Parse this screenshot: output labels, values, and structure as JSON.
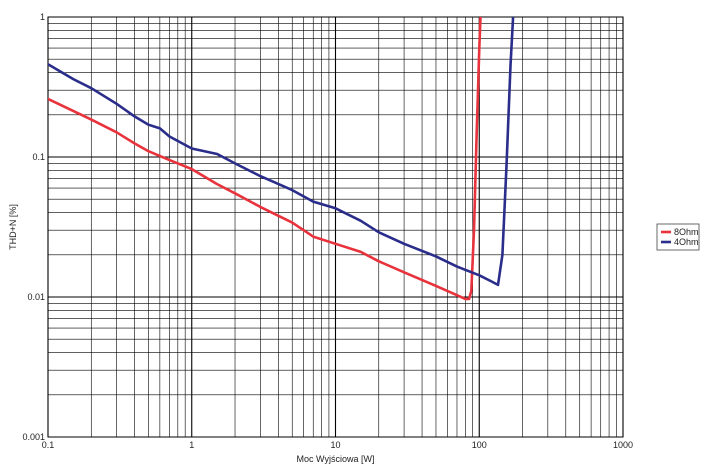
{
  "chart_data": {
    "type": "line",
    "xlabel": "Moc Wyjściowa [W]",
    "ylabel": "THD+N [%]",
    "x_scale": "log",
    "y_scale": "log",
    "xlim": [
      0.1,
      1000
    ],
    "ylim": [
      0.001,
      1
    ],
    "x_ticks": [
      {
        "value": 0.1,
        "label": "0.1"
      },
      {
        "value": 1,
        "label": "1"
      },
      {
        "value": 10,
        "label": "10"
      },
      {
        "value": 100,
        "label": "100"
      },
      {
        "value": 1000,
        "label": "1000"
      }
    ],
    "y_ticks": [
      {
        "value": 0.001,
        "label": "0.001"
      },
      {
        "value": 0.01,
        "label": "0.01"
      },
      {
        "value": 0.1,
        "label": "0.1"
      },
      {
        "value": 1,
        "label": "1"
      }
    ],
    "grid": true,
    "legend_position": "right",
    "series": [
      {
        "name": "8Ohm",
        "color": "#e8323c",
        "x": [
          0.1,
          0.2,
          0.3,
          0.4,
          0.5,
          0.7,
          1,
          1.5,
          2,
          3,
          5,
          7,
          10,
          15,
          20,
          30,
          50,
          70,
          80,
          85,
          88,
          92,
          96,
          100,
          102
        ],
        "y": [
          0.26,
          0.185,
          0.15,
          0.125,
          0.11,
          0.095,
          0.082,
          0.064,
          0.055,
          0.044,
          0.034,
          0.027,
          0.024,
          0.021,
          0.018,
          0.015,
          0.012,
          0.0103,
          0.0097,
          0.0097,
          0.011,
          0.03,
          0.15,
          0.6,
          1.0
        ]
      },
      {
        "name": "4Ohm",
        "color": "#2a2d8a",
        "x": [
          0.1,
          0.15,
          0.2,
          0.3,
          0.4,
          0.5,
          0.6,
          0.7,
          1,
          1.5,
          2,
          3,
          5,
          7,
          10,
          15,
          20,
          30,
          50,
          70,
          100,
          120,
          135,
          145,
          155,
          165,
          172
        ],
        "y": [
          0.46,
          0.36,
          0.31,
          0.24,
          0.195,
          0.17,
          0.16,
          0.14,
          0.115,
          0.105,
          0.09,
          0.073,
          0.058,
          0.048,
          0.043,
          0.035,
          0.029,
          0.024,
          0.0195,
          0.0165,
          0.0143,
          0.013,
          0.0122,
          0.02,
          0.09,
          0.45,
          1.0
        ]
      }
    ]
  }
}
